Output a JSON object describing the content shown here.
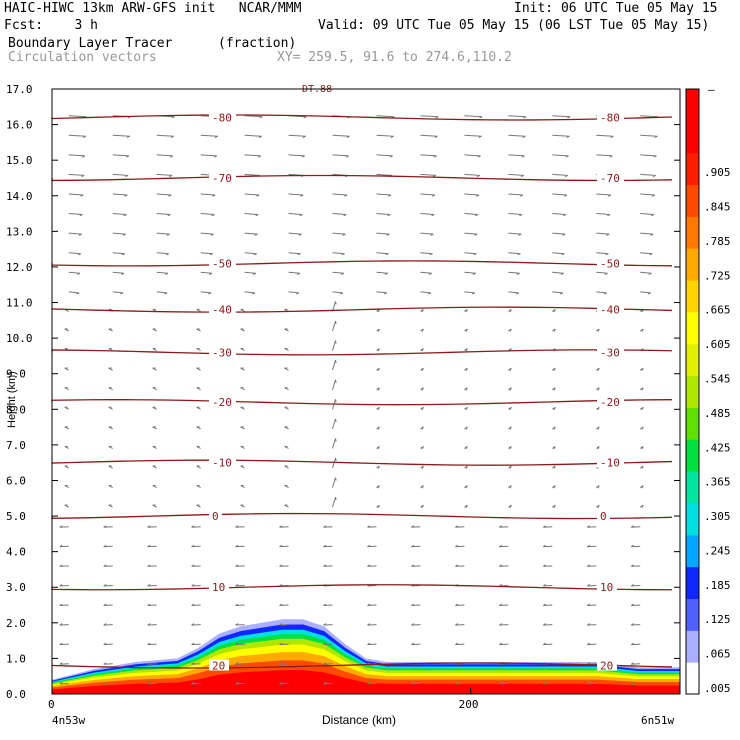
{
  "header": {
    "model": "HAIC-HIWC 13km ARW-GFS init   NCAR/MMM",
    "init": "Init: 06 UTC Tue 05 May 15",
    "fcst": "Fcst:    3 h",
    "valid": "Valid: 09 UTC Tue 05 May 15 (06 LST Tue 05 May 15)",
    "field1": "Boundary Layer Tracer",
    "field1_units": "(fraction)",
    "field2": "Circulation vectors",
    "xy": "XY= 259.5, 91.6 to 274.6,110.2"
  },
  "chart_data": {
    "type": "contour-cross-section",
    "xlabel": "Distance (km)",
    "ylabel": "Height (km)",
    "xlim": [
      0,
      300
    ],
    "ylim": [
      0.0,
      17.0
    ],
    "x_ticks": [
      0,
      200
    ],
    "x_end_labels": [
      "4n53w",
      "6n51w"
    ],
    "y_ticks": [
      "0.0",
      "1.0",
      "2.0",
      "3.0",
      "4.0",
      "5.0",
      "6.0",
      "7.0",
      "8.0",
      "9.0",
      "10.0",
      "11.0",
      "12.0",
      "13.0",
      "14.0",
      "15.0",
      "16.0",
      "17.0"
    ],
    "colorbar_labels": [
      ".005",
      ".065",
      ".125",
      ".185",
      ".245",
      ".305",
      ".365",
      ".425",
      ".485",
      ".545",
      ".605",
      ".665",
      ".725",
      ".785",
      ".845",
      ".905"
    ],
    "colorbar_colors": [
      "#ffffff",
      "#aab0ff",
      "#5060ff",
      "#1028ff",
      "#00a8ff",
      "#00e0e0",
      "#00e6a0",
      "#00e040",
      "#60e000",
      "#b0e600",
      "#e0f000",
      "#ffff00",
      "#ffd400",
      "#ffaa00",
      "#ff7800",
      "#ff4a00",
      "#ff1e00",
      "#ff0000",
      "#ff0000"
    ],
    "temperature_contours": [
      {
        "label": "20",
        "height_km": 0.8
      },
      {
        "label": "10",
        "height_km": 3.0
      },
      {
        "label": "0",
        "height_km": 5.0
      },
      {
        "label": "-10",
        "height_km": 6.5
      },
      {
        "label": "-20",
        "height_km": 8.2
      },
      {
        "label": "-30",
        "height_km": 9.6
      },
      {
        "label": "-40",
        "height_km": 10.8
      },
      {
        "label": "-50",
        "height_km": 12.1
      },
      {
        "label": "-70",
        "height_km": 14.5
      },
      {
        "label": "-80",
        "height_km": 16.2
      }
    ],
    "tracer_profile": {
      "x_km": [
        0,
        20,
        40,
        60,
        70,
        80,
        90,
        100,
        110,
        120,
        130,
        140,
        150,
        160,
        180,
        200,
        220,
        240,
        260,
        280,
        300
      ],
      "top_km": [
        0.4,
        0.7,
        0.9,
        1.0,
        1.3,
        1.7,
        1.9,
        2.0,
        2.1,
        2.1,
        1.9,
        1.4,
        1.0,
        0.9,
        0.9,
        0.9,
        0.9,
        0.9,
        0.9,
        0.75,
        0.75
      ]
    },
    "top_contour_label": "DT.88"
  }
}
